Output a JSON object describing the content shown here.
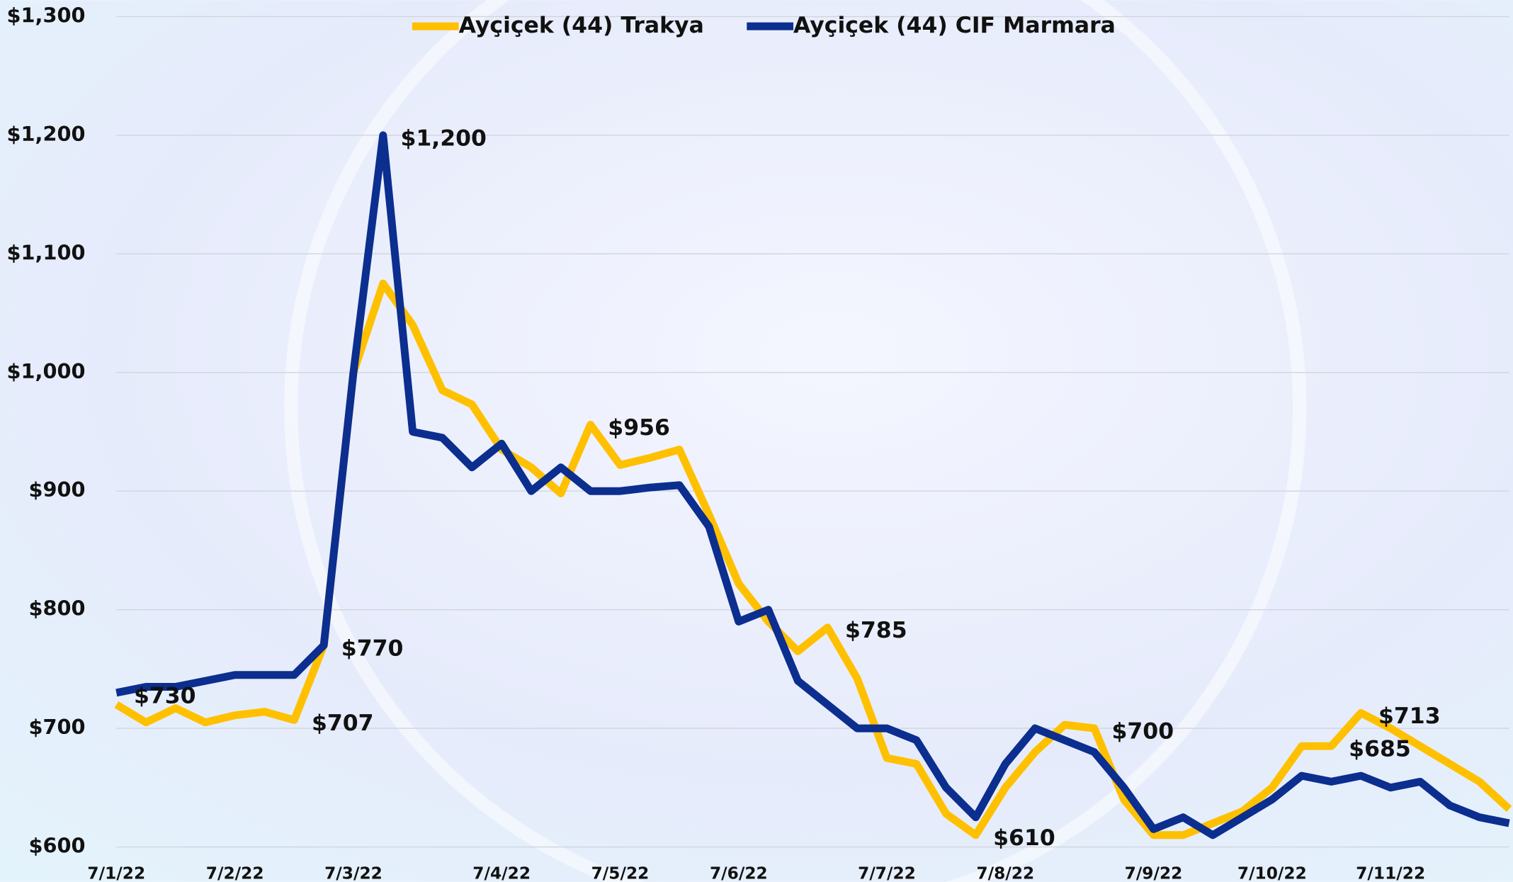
{
  "chart_data": {
    "type": "line",
    "categories": [
      "7/1/22",
      null,
      null,
      null,
      "7/2/22",
      null,
      null,
      null,
      "7/3/22",
      null,
      null,
      null,
      null,
      "7/4/22",
      null,
      null,
      null,
      "7/5/22",
      null,
      null,
      null,
      "7/6/22",
      null,
      null,
      null,
      null,
      "7/7/22",
      null,
      null,
      null,
      "7/8/22",
      null,
      null,
      null,
      null,
      "7/9/22",
      null,
      null,
      null,
      "7/10/22",
      null,
      null,
      null,
      "7/11/22",
      null,
      null,
      null,
      null
    ],
    "series": [
      {
        "name": "Ayçiçek (44) Trakya",
        "color": "#ffc000",
        "values": [
          720,
          705,
          717,
          705,
          711,
          714,
          707,
          770,
          1000,
          1075,
          1040,
          985,
          973,
          935,
          920,
          898,
          956,
          922,
          928,
          935,
          880,
          822,
          790,
          765,
          785,
          742,
          675,
          670,
          628,
          610,
          650,
          680,
          703,
          700,
          640,
          610,
          610,
          620,
          630,
          650,
          685,
          685,
          713,
          700,
          685,
          670,
          655,
          632
        ],
        "value_labels": [
          null,
          null,
          null,
          null,
          null,
          null,
          "$707",
          "$770",
          null,
          null,
          null,
          null,
          null,
          null,
          null,
          null,
          "$956",
          null,
          null,
          null,
          null,
          null,
          null,
          null,
          "$785",
          null,
          null,
          null,
          null,
          "$610",
          null,
          null,
          null,
          "$700",
          null,
          null,
          null,
          null,
          null,
          null,
          null,
          "$685",
          "$713",
          null,
          null,
          null,
          null,
          null
        ]
      },
      {
        "name": "Ayçiçek (44) CIF Marmara",
        "color": "#0b2e8f",
        "values": [
          730,
          735,
          735,
          740,
          745,
          745,
          745,
          770,
          1000,
          1200,
          950,
          945,
          920,
          940,
          900,
          920,
          900,
          900,
          903,
          905,
          870,
          790,
          800,
          740,
          720,
          700,
          700,
          690,
          650,
          625,
          670,
          700,
          690,
          680,
          650,
          615,
          625,
          610,
          625,
          640,
          660,
          655,
          660,
          650,
          655,
          635,
          625,
          620
        ],
        "value_labels": [
          "$730",
          null,
          null,
          null,
          null,
          null,
          null,
          null,
          null,
          "$1,200",
          null,
          null,
          null,
          null,
          null,
          null,
          null,
          null,
          null,
          null,
          null,
          null,
          null,
          null,
          null,
          null,
          null,
          null,
          null,
          null,
          null,
          null,
          null,
          null,
          null,
          null,
          null,
          null,
          null,
          null,
          null,
          null,
          null,
          null,
          null,
          null,
          null,
          null
        ]
      }
    ],
    "ylim": [
      600,
      1300
    ],
    "yticks": [
      {
        "value": 600,
        "label": "$600"
      },
      {
        "value": 700,
        "label": "$700"
      },
      {
        "value": 800,
        "label": "$800"
      },
      {
        "value": 900,
        "label": "$900"
      },
      {
        "value": 1000,
        "label": "$1,000"
      },
      {
        "value": 1100,
        "label": "$1,100"
      },
      {
        "value": 1200,
        "label": "$1,200"
      },
      {
        "value": 1300,
        "label": "$1,300"
      }
    ],
    "grid": true
  }
}
